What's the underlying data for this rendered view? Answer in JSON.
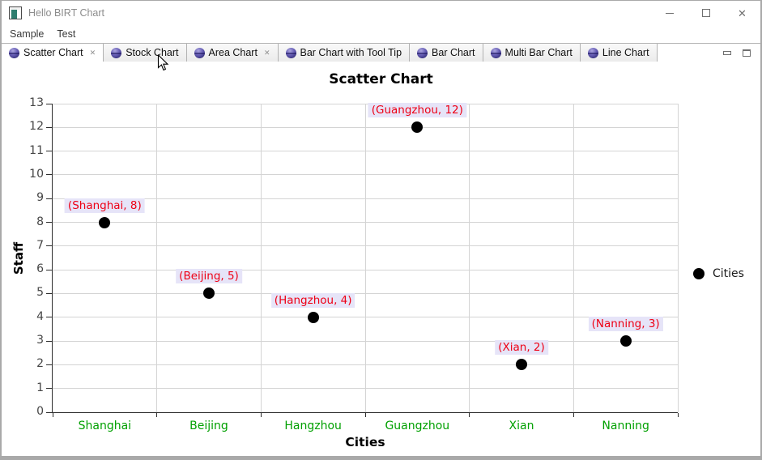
{
  "window": {
    "title": "Hello BIRT Chart"
  },
  "menu": {
    "items": [
      {
        "label": "Sample"
      },
      {
        "label": "Test"
      }
    ]
  },
  "tabs": {
    "items": [
      {
        "label": "Scatter Chart",
        "selected": true,
        "closable": true,
        "icon": "chart-sphere-icon"
      },
      {
        "label": "Stock Chart",
        "selected": false,
        "closable": false,
        "icon": "chart-sphere-icon"
      },
      {
        "label": "Area Chart",
        "selected": false,
        "closable": true,
        "icon": "chart-sphere-icon"
      },
      {
        "label": "Bar Chart with Tool Tip",
        "selected": false,
        "closable": false,
        "icon": "chart-sphere-icon"
      },
      {
        "label": "Bar Chart",
        "selected": false,
        "closable": false,
        "icon": "chart-sphere-icon"
      },
      {
        "label": "Multi Bar Chart",
        "selected": false,
        "closable": false,
        "icon": "chart-sphere-icon"
      },
      {
        "label": "Line Chart",
        "selected": false,
        "closable": false,
        "icon": "chart-sphere-icon"
      }
    ]
  },
  "chart_data": {
    "type": "scatter",
    "title": "Scatter Chart",
    "xlabel": "Cities",
    "ylabel": "Staff",
    "categories": [
      "Shanghai",
      "Beijing",
      "Hangzhou",
      "Guangzhou",
      "Xian",
      "Nanning"
    ],
    "series": [
      {
        "name": "Cities",
        "values": [
          8,
          5,
          4,
          12,
          2,
          3
        ]
      }
    ],
    "point_labels": [
      "(Shanghai, 8)",
      "(Beijing, 5)",
      "(Hangzhou, 4)",
      "(Guangzhou, 12)",
      "(Xian, 2)",
      "(Nanning, 3)"
    ],
    "ylim": [
      0,
      13
    ],
    "ytick_step": 1,
    "grid": true,
    "legend": {
      "position": "right",
      "entries": [
        "Cities"
      ]
    },
    "colors": {
      "point": "#000000",
      "label_text": "#ee0015",
      "label_bg": "#e6e4f8",
      "category_text": "#00a000",
      "grid": "#d4d4d4",
      "axis": "#2e2e2e"
    }
  }
}
